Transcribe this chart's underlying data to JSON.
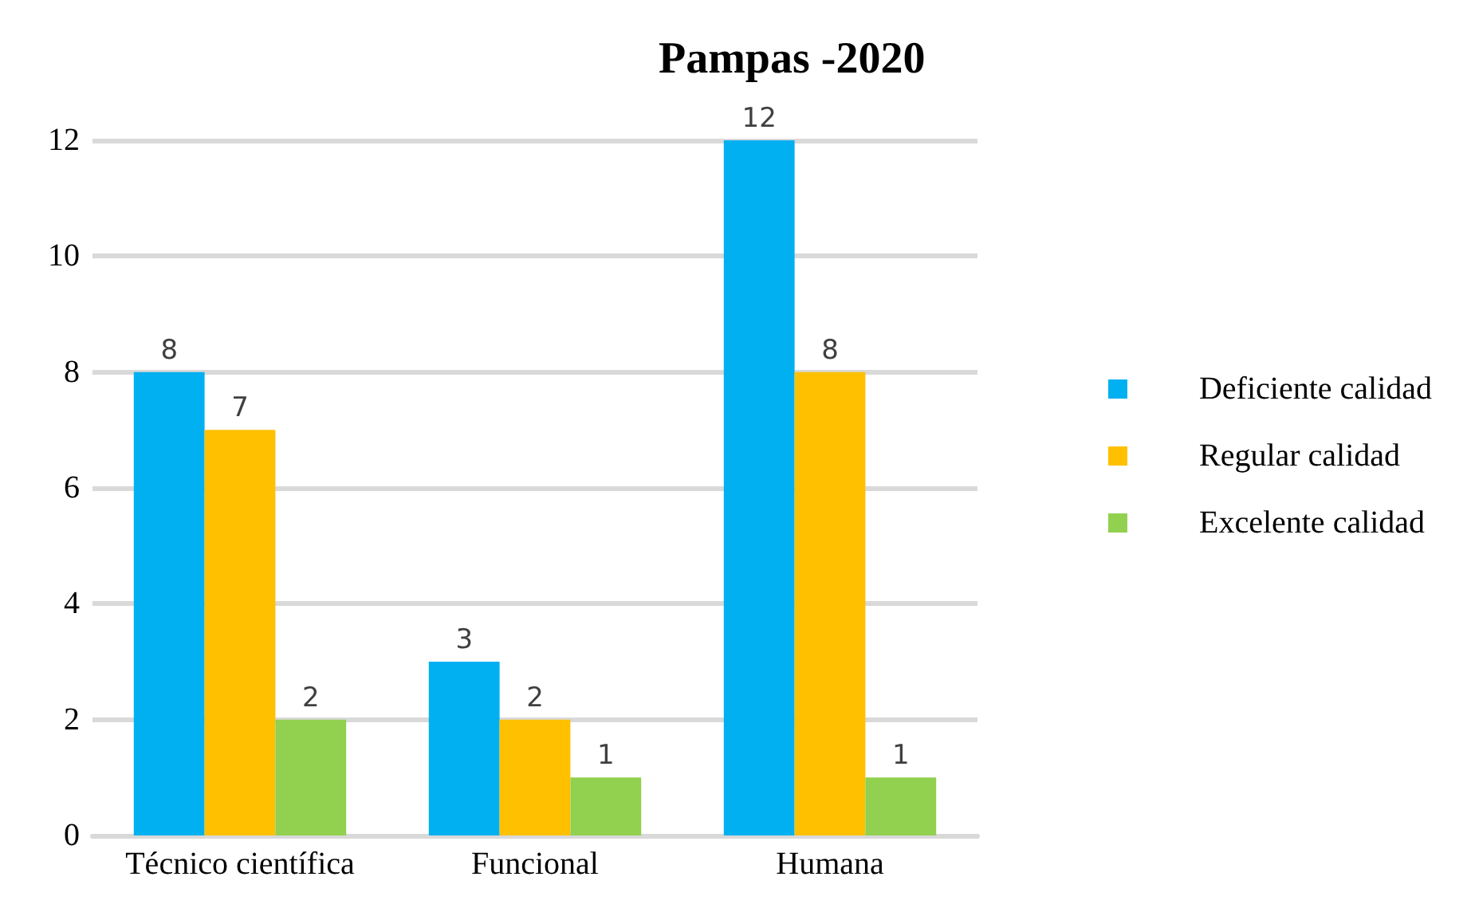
{
  "chart_data": {
    "type": "bar",
    "title": "Pampas -2020",
    "categories": [
      "Técnico científica",
      "Funcional",
      "Humana"
    ],
    "series": [
      {
        "name": "Deficiente calidad",
        "color": "#00b0f0",
        "values": [
          8,
          3,
          12
        ]
      },
      {
        "name": "Regular calidad",
        "color": "#ffc000",
        "values": [
          7,
          2,
          8
        ]
      },
      {
        "name": "Excelente calidad",
        "color": "#92d050",
        "values": [
          2,
          1,
          1
        ]
      }
    ],
    "ylim": [
      0,
      12
    ],
    "yticks": [
      0,
      2,
      4,
      6,
      8,
      10,
      12
    ],
    "grid": "y",
    "legend": "right",
    "data_labels": true
  }
}
